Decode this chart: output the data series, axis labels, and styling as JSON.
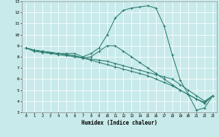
{
  "xlabel": "Humidex (Indice chaleur)",
  "ylabel": "",
  "background_color": "#c8eaea",
  "grid_color": "#ffffff",
  "line_color": "#2e7d6e",
  "xlim": [
    -0.5,
    23.5
  ],
  "ylim": [
    3,
    13
  ],
  "xticks": [
    0,
    1,
    2,
    3,
    4,
    5,
    6,
    7,
    8,
    9,
    10,
    11,
    12,
    13,
    14,
    15,
    16,
    17,
    18,
    19,
    20,
    21,
    22,
    23
  ],
  "yticks": [
    3,
    4,
    5,
    6,
    7,
    8,
    9,
    10,
    11,
    12,
    13
  ],
  "series": [
    [
      8.8,
      8.6,
      8.5,
      8.4,
      8.3,
      8.3,
      8.3,
      8.0,
      8.3,
      8.8,
      10.0,
      11.5,
      12.2,
      12.4,
      12.5,
      12.6,
      12.4,
      10.8,
      8.2,
      5.9,
      4.6,
      3.2,
      3.4,
      4.5
    ],
    [
      8.8,
      8.6,
      8.5,
      8.4,
      8.3,
      8.2,
      8.1,
      7.9,
      8.0,
      8.5,
      9.0,
      9.0,
      8.5,
      8.0,
      7.5,
      7.0,
      6.5,
      6.0,
      5.5,
      5.0,
      4.6,
      4.2,
      3.9,
      4.5
    ],
    [
      8.8,
      8.6,
      8.5,
      8.4,
      8.3,
      8.2,
      8.1,
      7.9,
      7.8,
      7.7,
      7.6,
      7.4,
      7.2,
      7.0,
      6.8,
      6.6,
      6.4,
      6.2,
      6.0,
      5.5,
      5.0,
      4.5,
      4.0,
      4.5
    ],
    [
      8.8,
      8.5,
      8.4,
      8.3,
      8.2,
      8.1,
      8.0,
      7.9,
      7.7,
      7.5,
      7.3,
      7.1,
      6.9,
      6.7,
      6.5,
      6.3,
      6.0,
      5.7,
      5.4,
      5.0,
      4.6,
      4.2,
      3.8,
      4.5
    ]
  ]
}
